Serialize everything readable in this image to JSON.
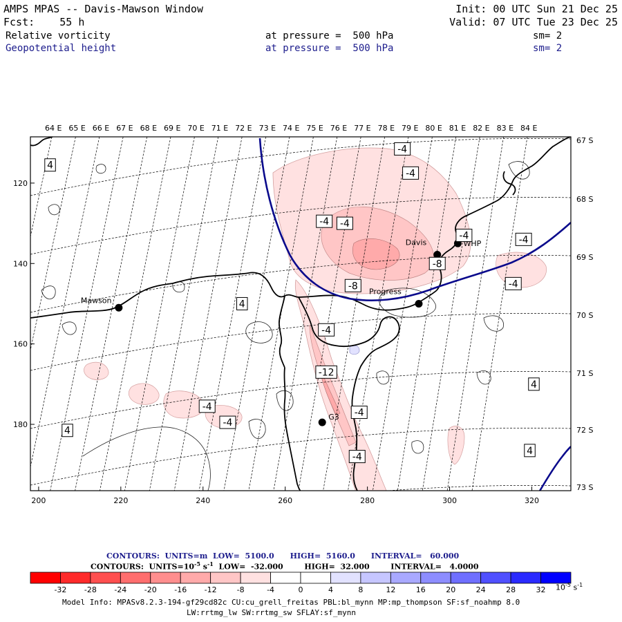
{
  "header": {
    "title": "AMPS MPAS -- Davis-Mawson Window",
    "forecast": "Fcst:    55 h",
    "init": "Init: 00 UTC Sun 21 Dec 25",
    "valid": "Valid: 07 UTC Tue 23 Dec 25",
    "field1": {
      "name": "Relative vorticity",
      "level": "at pressure =  500 hPa",
      "smooth": "sm= 2"
    },
    "field2": {
      "name": "Geopotential height",
      "level": "at pressure =  500 hPa",
      "smooth": "sm= 2"
    }
  },
  "longitude_labels": [
    "64 E",
    "65 E",
    "66 E",
    "67 E",
    "68 E",
    "69 E",
    "70 E",
    "71 E",
    "72 E",
    "73 E",
    "74 E",
    "75 E",
    "76 E",
    "77 E",
    "78 E",
    "79 E",
    "80 E",
    "81 E",
    "82 E",
    "83 E",
    "84 E"
  ],
  "latitude_labels": [
    "67 S",
    "68 S",
    "69 S",
    "70 S",
    "71 S",
    "72 S",
    "73 S"
  ],
  "x_ticks": [
    "200",
    "220",
    "240",
    "260",
    "280",
    "300",
    "320"
  ],
  "y_ticks": [
    "120",
    "140",
    "160",
    "180"
  ],
  "stations": [
    {
      "name": "Mawson",
      "x": 219.5,
      "y": 151
    },
    {
      "name": "Davis",
      "x": 297,
      "y": 137.8
    },
    {
      "name": "WHP",
      "x": 302,
      "y": 135
    },
    {
      "name": "Progress",
      "x": 292.5,
      "y": 150
    },
    {
      "name": "G3",
      "x": 269,
      "y": 179.5
    }
  ],
  "contour_labels": [
    {
      "t": "4",
      "x": 202.8,
      "y": 115.5
    },
    {
      "t": "-4",
      "x": 288.5,
      "y": 111.5
    },
    {
      "t": "-4",
      "x": 290.5,
      "y": 117.5
    },
    {
      "t": "-4",
      "x": 269.5,
      "y": 129.5
    },
    {
      "t": "-4",
      "x": 274.5,
      "y": 130
    },
    {
      "t": "-4",
      "x": 303.5,
      "y": 133
    },
    {
      "t": "-4",
      "x": 318,
      "y": 134
    },
    {
      "t": "-8",
      "x": 297,
      "y": 140
    },
    {
      "t": "-4",
      "x": 315.5,
      "y": 145
    },
    {
      "t": "-8",
      "x": 276.5,
      "y": 145.5
    },
    {
      "t": "4",
      "x": 249.5,
      "y": 150
    },
    {
      "t": "-4",
      "x": 270,
      "y": 156.5
    },
    {
      "t": "-12",
      "x": 270,
      "y": 167
    },
    {
      "t": "4",
      "x": 320.5,
      "y": 170
    },
    {
      "t": "-4",
      "x": 241,
      "y": 175.5
    },
    {
      "t": "-4",
      "x": 278,
      "y": 177
    },
    {
      "t": "-4",
      "x": 246,
      "y": 179.5
    },
    {
      "t": "4",
      "x": 207,
      "y": 181.5
    },
    {
      "t": "4",
      "x": 319.5,
      "y": 186.5
    },
    {
      "t": "-4",
      "x": 277.5,
      "y": 188
    }
  ],
  "contours_line1": {
    "label": "CONTOURS:  UNITS=m  LOW=  5100.0      HIGH=  5160.0      INTERVAL=   60.000"
  },
  "contours_line2": {
    "label": "CONTOURS:  UNITS=10",
    "exp": "-5",
    "unit": " s",
    "unit_exp": "-1",
    "rest": "  LOW=  -32.000        HIGH=  32.000        INTERVAL=   4.0000"
  },
  "colorbar": {
    "values": [
      -32,
      -28,
      -24,
      -20,
      -16,
      -12,
      -8,
      -4,
      0,
      4,
      8,
      12,
      16,
      20,
      24,
      28,
      32
    ],
    "colors": [
      "#ff0000",
      "#ff2a2a",
      "#ff4f4f",
      "#ff6e6e",
      "#ff8e8e",
      "#ffaaaa",
      "#ffc6c6",
      "#ffe1e1",
      "#ffffff",
      "#ffffff",
      "#e2e2ff",
      "#c6c6ff",
      "#a9a9ff",
      "#8d8dff",
      "#6f6fff",
      "#5050ff",
      "#2a2aff",
      "#0000ff"
    ],
    "unit": "10",
    "unit_exp": "-5",
    "unit_s": " s",
    "unit_s_exp": "-1"
  },
  "model_info": {
    "line1": "Model Info: MPASv8.2.3-194-gf29cd82c CU:cu_grell_freitas PBL:bl_mynn MP:mp_thompson SF:sf_noahmp 8.0",
    "line2": "LW:rrtmg_lw SW:rrtmg_sw SFLAY:sf_mynn"
  },
  "colors": {
    "height_contour": "#0a0a8c",
    "coastline": "#000000",
    "grid": "#000000"
  }
}
